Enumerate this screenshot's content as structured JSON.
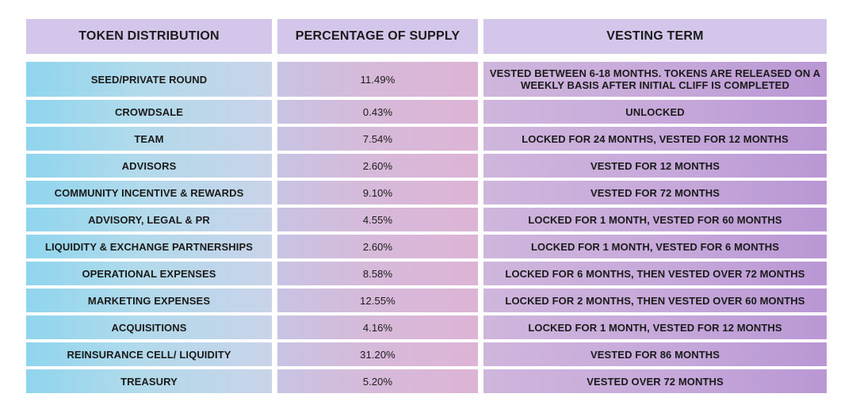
{
  "headers": {
    "distribution": "TOKEN DISTRIBUTION",
    "percentage": "PERCENTAGE OF SUPPLY",
    "vesting": "VESTING TERM"
  },
  "rows": [
    {
      "name": "SEED/PRIVATE ROUND",
      "percent": "11.49%",
      "vesting": "VESTED BETWEEN 6-18 MONTHS. TOKENS ARE RELEASED ON A WEEKLY BASIS AFTER INITIAL CLIFF IS COMPLETED"
    },
    {
      "name": "CROWDSALE",
      "percent": "0.43%",
      "vesting": "UNLOCKED"
    },
    {
      "name": "TEAM",
      "percent": "7.54%",
      "vesting": "LOCKED FOR 24 MONTHS, VESTED FOR 12 MONTHS"
    },
    {
      "name": "ADVISORS",
      "percent": "2.60%",
      "vesting": "VESTED FOR 12 MONTHS"
    },
    {
      "name": "COMMUNITY INCENTIVE & REWARDS",
      "percent": "9.10%",
      "vesting": "VESTED FOR 72 MONTHS"
    },
    {
      "name": "ADVISORY, LEGAL & PR",
      "percent": "4.55%",
      "vesting": "LOCKED FOR 1 MONTH, VESTED FOR 60 MONTHS"
    },
    {
      "name": "LIQUIDITY & EXCHANGE PARTNERSHIPS",
      "percent": "2.60%",
      "vesting": "LOCKED FOR 1 MONTH, VESTED FOR 6 MONTHS"
    },
    {
      "name": "OPERATIONAL EXPENSES",
      "percent": "8.58%",
      "vesting": "LOCKED FOR 6 MONTHS, THEN VESTED OVER 72 MONTHS"
    },
    {
      "name": "MARKETING EXPENSES",
      "percent": "12.55%",
      "vesting": "LOCKED FOR 2 MONTHS, THEN VESTED OVER 60 MONTHS"
    },
    {
      "name": "ACQUISITIONS",
      "percent": "4.16%",
      "vesting": "LOCKED FOR 1 MONTH, VESTED FOR 12 MONTHS"
    },
    {
      "name": "REINSURANCE CELL/ LIQUIDITY",
      "percent": "31.20%",
      "vesting": "VESTED FOR 86 MONTHS"
    },
    {
      "name": "TREASURY",
      "percent": "5.20%",
      "vesting": "VESTED OVER 72 MONTHS"
    }
  ],
  "colors": {
    "header_bg": "#d4c6ea",
    "col1_bg": "#8fd5ee",
    "col2_bg": "#d7b9d9",
    "col3_bg": "#c6a8da",
    "text": "#1a1a1a"
  }
}
